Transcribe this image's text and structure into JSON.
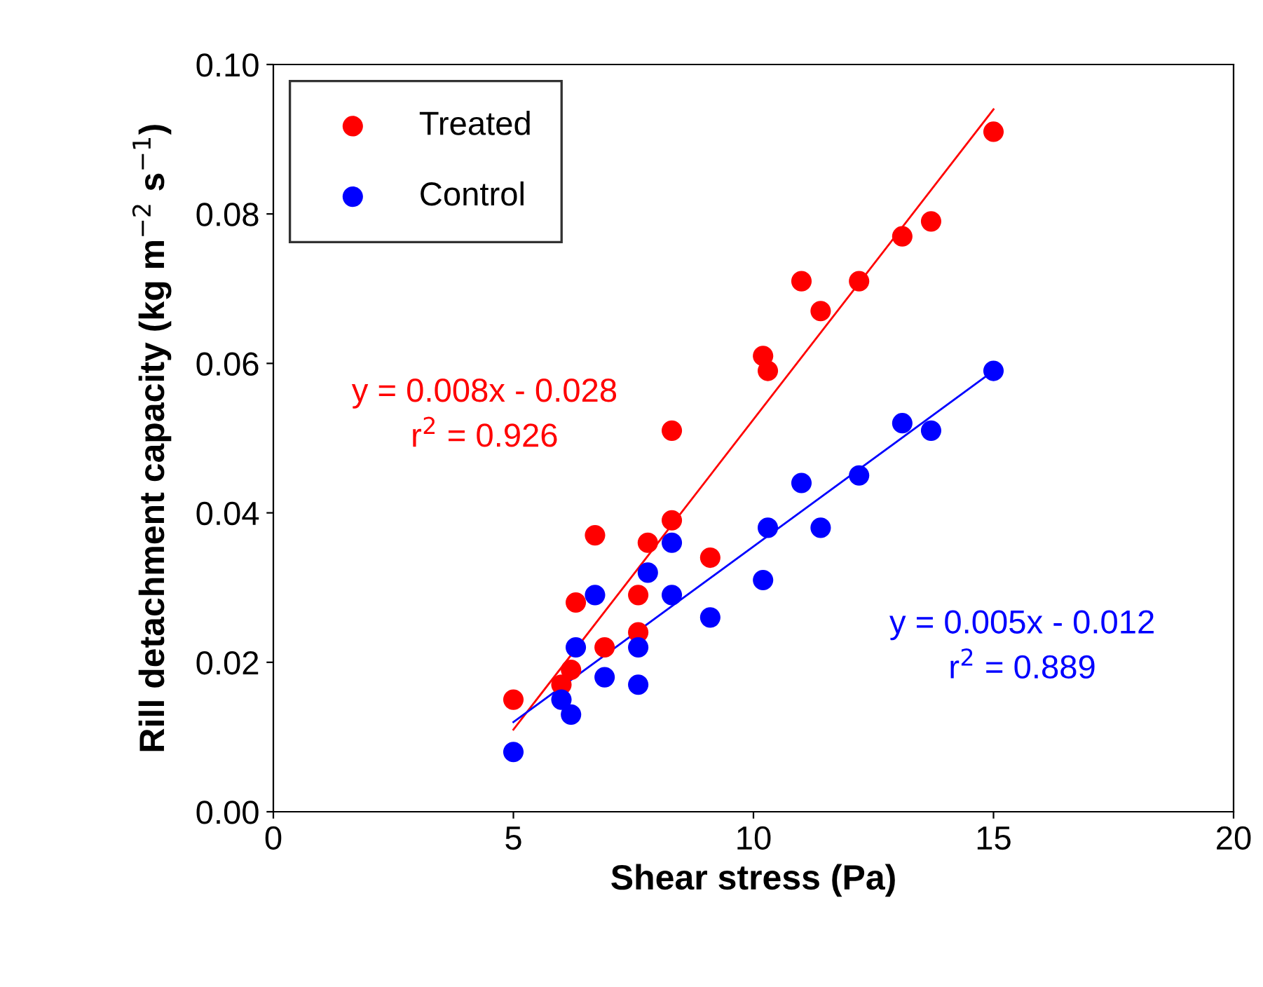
{
  "chart_data": {
    "type": "scatter",
    "xlabel": "Shear stress (Pa)",
    "ylabel": "Rill detachment capacity (kg m$^{−2}$ s$^{−1}$)",
    "xlim": [
      0,
      20
    ],
    "xticks": [
      0,
      5,
      10,
      15,
      20
    ],
    "ylim": [
      0,
      0.1
    ],
    "yticks": [
      {
        "value": 0,
        "label": "0.00"
      },
      {
        "value": 0.02,
        "label": "0.02"
      },
      {
        "value": 0.04,
        "label": "0.04"
      },
      {
        "value": 0.06,
        "label": "0.06"
      },
      {
        "value": 0.08,
        "label": "0.08"
      },
      {
        "value": 0.1,
        "label": "0.10"
      }
    ],
    "grid": false,
    "legend": "top left",
    "marker": "circle",
    "series": [
      {
        "name": "Treated",
        "color": "#ff0000",
        "x": [
          5.0,
          6.0,
          6.2,
          6.3,
          6.7,
          6.9,
          7.6,
          7.6,
          7.8,
          8.3,
          8.3,
          9.1,
          10.2,
          10.3,
          11.0,
          11.4,
          12.2,
          13.1,
          13.7,
          15.0
        ],
        "values": [
          0.015,
          0.017,
          0.019,
          0.028,
          0.037,
          0.022,
          0.024,
          0.029,
          0.036,
          0.039,
          0.051,
          0.034,
          0.061,
          0.059,
          0.071,
          0.067,
          0.071,
          0.077,
          0.079,
          0.091
        ]
      },
      {
        "name": "Control",
        "color": "#0000ff",
        "x": [
          5.0,
          6.0,
          6.2,
          6.3,
          6.7,
          6.9,
          7.6,
          7.6,
          7.8,
          8.3,
          8.3,
          9.1,
          10.2,
          10.3,
          11.0,
          11.4,
          12.2,
          13.1,
          13.7,
          15.0
        ],
        "values": [
          0.008,
          0.015,
          0.013,
          0.022,
          0.029,
          0.018,
          0.017,
          0.022,
          0.032,
          0.029,
          0.036,
          0.026,
          0.031,
          0.038,
          0.044,
          0.038,
          0.045,
          0.052,
          0.051,
          0.059
        ]
      },
      {
        "type": "line",
        "marker": "none",
        "color": "#ff0000",
        "x": [
          5.0,
          15.0
        ],
        "values": [
          0.011,
          0.094
        ]
      },
      {
        "type": "line",
        "marker": "none",
        "color": "#0000ff",
        "x": [
          5.0,
          15.0
        ],
        "values": [
          0.012,
          0.059
        ]
      }
    ],
    "annotations": [
      "y = 0.008x - 0.028\nr$^{2}$ = 0.926",
      "y = 0.005x - 0.012\nr$^{2}$ = 0.889"
    ]
  }
}
